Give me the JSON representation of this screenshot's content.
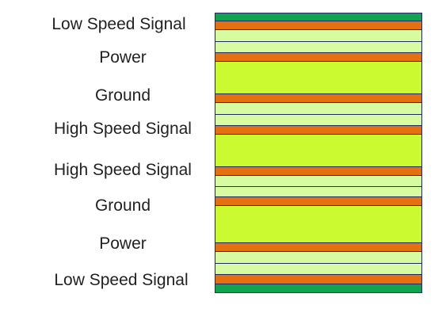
{
  "stackup": {
    "labels": [
      "Low Speed Signal",
      "Power",
      "Ground",
      "High Speed Signal",
      "High Speed Signal",
      "Ground",
      "Power",
      "Low Speed Signal"
    ],
    "layer_kinds": [
      "soldermask",
      "copper",
      "dielectric",
      "dielectric",
      "copper",
      "core",
      "copper",
      "dielectric",
      "dielectric",
      "copper",
      "core",
      "copper",
      "dielectric",
      "dielectric",
      "copper",
      "core",
      "copper",
      "dielectric",
      "dielectric",
      "copper",
      "soldermask"
    ],
    "colors": {
      "soldermask": "#11a44f",
      "copper": "#e4700f",
      "dielectric": "#d7fba0",
      "core": "#ccfa30",
      "outline": "#1f2a60"
    }
  }
}
